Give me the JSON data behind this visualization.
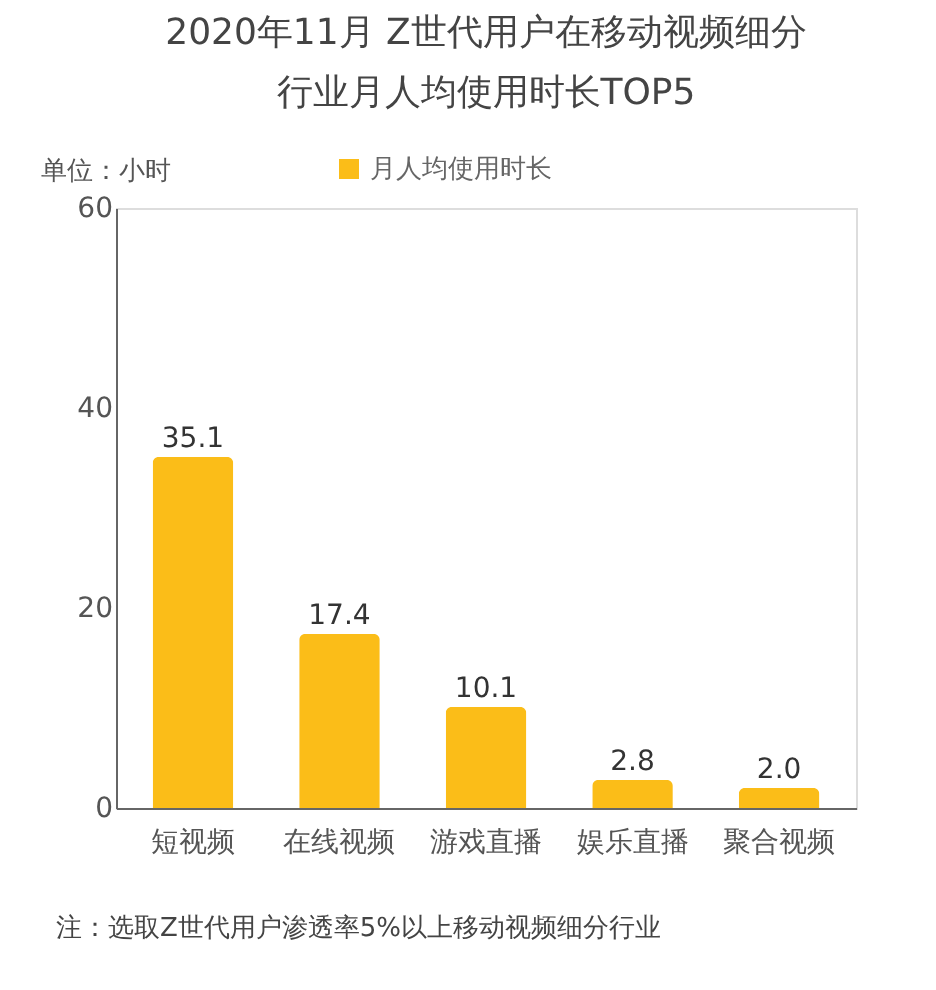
{
  "chart_data": {
    "type": "bar",
    "title": [
      "2020年11月 Z世代用户在移动视频细分",
      "行业月人均使用时长TOP5"
    ],
    "ylabel": "单位：小时",
    "categories": [
      "短视频",
      "在线视频",
      "游戏直播",
      "娱乐直播",
      "聚合视频"
    ],
    "series": [
      {
        "name": "月人均使用时长",
        "color": "#fbbd18",
        "values": [
          35.1,
          17.4,
          10.1,
          2.8,
          2.0
        ]
      }
    ],
    "value_labels": [
      "35.1",
      "17.4",
      "10.1",
      "2.8",
      "2.0"
    ],
    "ylim": [
      0,
      60
    ],
    "yticks": [
      0,
      20,
      40,
      60
    ],
    "grid": false,
    "legend": "top",
    "annotations": [
      "注：选取Z世代用户渗透率5%以上移动视频细分行业"
    ]
  }
}
